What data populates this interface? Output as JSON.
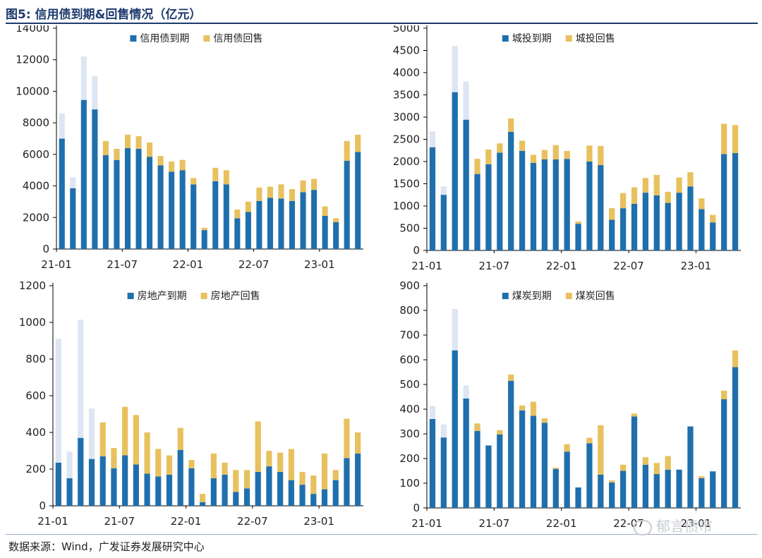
{
  "figure_title": "图5:  信用债到期&回售情况（亿元）",
  "source": "数据来源：Wind，广发证券发展研究中心",
  "watermark": "郁言债市",
  "colors": {
    "maturity": "#1f6fad",
    "putback": "#e8c15e",
    "ghost": "#dde6f2",
    "axis": "#000000",
    "title": "#1f3b6e"
  },
  "chart_data": [
    {
      "type": "bar",
      "stacked": true,
      "categories": [
        "21-01",
        "21-02",
        "21-03",
        "21-04",
        "21-05",
        "21-06",
        "21-07",
        "21-08",
        "21-09",
        "21-10",
        "21-11",
        "21-12",
        "22-01",
        "22-02",
        "22-03",
        "22-04",
        "22-05",
        "22-06",
        "22-07",
        "22-08",
        "22-09",
        "22-10",
        "22-11",
        "22-12",
        "23-01",
        "23-02",
        "23-03",
        "23-04"
      ],
      "tick_labels": [
        "21-01",
        "21-07",
        "22-01",
        "22-07",
        "23-01"
      ],
      "tick_indices": [
        0,
        6,
        12,
        18,
        24
      ],
      "ylim": [
        0,
        14000
      ],
      "yticks": [
        "0",
        "2000",
        "4000",
        "6000",
        "8000",
        "10000",
        "12000",
        "14000"
      ],
      "series": [
        {
          "name": "信用债到期",
          "values": [
            7000,
            3850,
            9450,
            8850,
            5950,
            5650,
            6400,
            6350,
            5850,
            5300,
            4900,
            5000,
            4100,
            1200,
            4300,
            4100,
            1950,
            2350,
            3050,
            3250,
            3200,
            3050,
            3600,
            3750,
            2100,
            1700,
            5600,
            6150
          ]
        },
        {
          "name": "信用债回售",
          "values": [
            0,
            0,
            0,
            0,
            900,
            700,
            850,
            800,
            900,
            600,
            650,
            650,
            400,
            150,
            850,
            900,
            550,
            650,
            850,
            700,
            900,
            750,
            750,
            700,
            600,
            250,
            1250,
            1100
          ]
        }
      ],
      "ghost_values": [
        8600,
        4550,
        12200,
        10950,
        0,
        0,
        0,
        0,
        0,
        0,
        0,
        0,
        0,
        0,
        0,
        0,
        0,
        0,
        0,
        0,
        0,
        0,
        0,
        0,
        0,
        0,
        0,
        0
      ]
    },
    {
      "type": "bar",
      "stacked": true,
      "categories": [
        "21-01",
        "21-02",
        "21-03",
        "21-04",
        "21-05",
        "21-06",
        "21-07",
        "21-08",
        "21-09",
        "21-10",
        "21-11",
        "21-12",
        "22-01",
        "22-02",
        "22-03",
        "22-04",
        "22-05",
        "22-06",
        "22-07",
        "22-08",
        "22-09",
        "22-10",
        "22-11",
        "22-12",
        "23-01",
        "23-02",
        "23-03",
        "23-04"
      ],
      "tick_labels": [
        "21-01",
        "21-07",
        "22-01",
        "22-07",
        "23-01"
      ],
      "tick_indices": [
        0,
        6,
        12,
        18,
        24
      ],
      "ylim": [
        0,
        5000
      ],
      "yticks": [
        "0",
        "500",
        "1000",
        "1500",
        "2000",
        "2500",
        "3000",
        "3500",
        "4000",
        "4500",
        "5000"
      ],
      "series": [
        {
          "name": "城投到期",
          "values": [
            2320,
            1250,
            3560,
            2940,
            1720,
            1940,
            2200,
            2670,
            2240,
            1970,
            2050,
            2050,
            2060,
            600,
            2000,
            1920,
            690,
            950,
            1050,
            1300,
            1240,
            1070,
            1300,
            1440,
            930,
            630,
            2170,
            2190
          ]
        },
        {
          "name": "城投回售",
          "values": [
            0,
            0,
            0,
            0,
            340,
            330,
            210,
            300,
            230,
            180,
            210,
            320,
            180,
            50,
            360,
            430,
            260,
            340,
            370,
            330,
            460,
            250,
            340,
            320,
            240,
            170,
            680,
            630
          ]
        }
      ],
      "ghost_values": [
        2680,
        1440,
        4600,
        3800,
        0,
        0,
        0,
        0,
        0,
        0,
        0,
        0,
        0,
        0,
        0,
        0,
        0,
        0,
        0,
        0,
        0,
        0,
        0,
        0,
        0,
        0,
        0,
        0
      ]
    },
    {
      "type": "bar",
      "stacked": true,
      "categories": [
        "21-01",
        "21-02",
        "21-03",
        "21-04",
        "21-05",
        "21-06",
        "21-07",
        "21-08",
        "21-09",
        "21-10",
        "21-11",
        "21-12",
        "22-01",
        "22-02",
        "22-03",
        "22-04",
        "22-05",
        "22-06",
        "22-07",
        "22-08",
        "22-09",
        "22-10",
        "22-11",
        "22-12",
        "23-01",
        "23-02",
        "23-03",
        "23-04"
      ],
      "tick_labels": [
        "21-01",
        "21-07",
        "22-01",
        "22-07",
        "23-01"
      ],
      "tick_indices": [
        0,
        6,
        12,
        18,
        24
      ],
      "ylim": [
        0,
        1200
      ],
      "yticks": [
        "0",
        "200",
        "400",
        "600",
        "800",
        "1000",
        "1200"
      ],
      "series": [
        {
          "name": "房地产到期",
          "values": [
            235,
            150,
            370,
            255,
            270,
            205,
            275,
            225,
            175,
            160,
            170,
            305,
            205,
            20,
            150,
            170,
            75,
            95,
            185,
            215,
            185,
            140,
            115,
            65,
            90,
            140,
            260,
            285
          ]
        },
        {
          "name": "房地产回售",
          "values": [
            0,
            0,
            0,
            0,
            185,
            110,
            265,
            270,
            225,
            150,
            105,
            120,
            45,
            45,
            135,
            65,
            120,
            100,
            275,
            85,
            105,
            170,
            70,
            100,
            195,
            55,
            215,
            115
          ]
        }
      ],
      "ghost_values": [
        910,
        295,
        1015,
        530,
        0,
        0,
        0,
        0,
        0,
        0,
        0,
        0,
        0,
        0,
        0,
        0,
        0,
        0,
        0,
        0,
        0,
        0,
        0,
        0,
        0,
        0,
        0,
        0
      ]
    },
    {
      "type": "bar",
      "stacked": true,
      "categories": [
        "21-01",
        "21-02",
        "21-03",
        "21-04",
        "21-05",
        "21-06",
        "21-07",
        "21-08",
        "21-09",
        "21-10",
        "21-11",
        "21-12",
        "22-01",
        "22-02",
        "22-03",
        "22-04",
        "22-05",
        "22-06",
        "22-07",
        "22-08",
        "22-09",
        "22-10",
        "22-11",
        "22-12",
        "23-01",
        "23-02",
        "23-03",
        "23-04"
      ],
      "tick_labels": [
        "21-01",
        "21-07",
        "22-01",
        "22-07",
        "23-01"
      ],
      "tick_indices": [
        0,
        6,
        12,
        18,
        24
      ],
      "ylim": [
        0,
        900
      ],
      "yticks": [
        "0",
        "100",
        "200",
        "300",
        "400",
        "500",
        "600",
        "700",
        "800",
        "900"
      ],
      "series": [
        {
          "name": "煤炭到期",
          "values": [
            360,
            285,
            638,
            443,
            312,
            253,
            298,
            515,
            395,
            373,
            345,
            158,
            228,
            83,
            262,
            135,
            103,
            150,
            370,
            175,
            137,
            155,
            155,
            330,
            120,
            148,
            440,
            570
          ]
        },
        {
          "name": "煤炭回售",
          "values": [
            0,
            0,
            0,
            0,
            30,
            0,
            17,
            25,
            20,
            57,
            18,
            5,
            30,
            0,
            22,
            200,
            8,
            25,
            12,
            30,
            45,
            55,
            0,
            0,
            8,
            0,
            35,
            68
          ]
        }
      ],
      "ghost_values": [
        413,
        338,
        806,
        496,
        0,
        0,
        0,
        0,
        0,
        0,
        0,
        0,
        0,
        0,
        0,
        0,
        0,
        0,
        0,
        0,
        0,
        0,
        0,
        0,
        0,
        0,
        0,
        0
      ]
    }
  ]
}
